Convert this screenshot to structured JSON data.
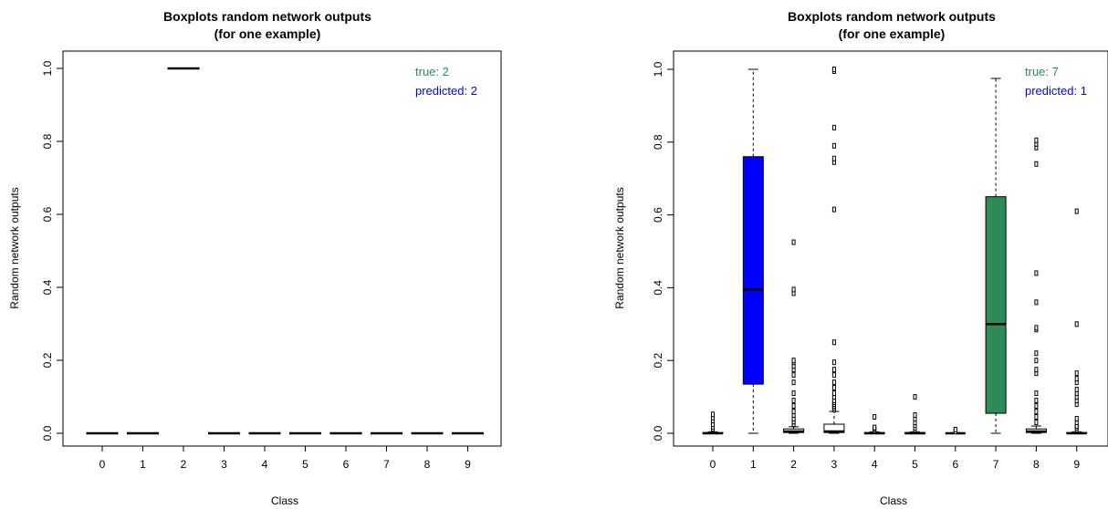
{
  "chart_data": [
    {
      "type": "boxplot",
      "title": [
        "Boxplots  random network outputs",
        "(for one example)"
      ],
      "xlabel": "Class",
      "ylabel": "Random network outputs",
      "categories": [
        "0",
        "1",
        "2",
        "3",
        "4",
        "5",
        "6",
        "7",
        "8",
        "9"
      ],
      "ylim": [
        0,
        1
      ],
      "yticks": [
        "0.0",
        "0.2",
        "0.4",
        "0.6",
        "0.8",
        "1.0"
      ],
      "annotation": {
        "true_text": "true:  2",
        "predicted_text": "predicted:  2",
        "true_color": "#2e8b57",
        "predicted_color": "#0000ff"
      },
      "boxes": [
        {
          "cat": "0",
          "min": 0,
          "q1": 0,
          "median": 0,
          "q3": 0,
          "max": 0,
          "outliers": [],
          "fill": "#ffffff"
        },
        {
          "cat": "1",
          "min": 0,
          "q1": 0,
          "median": 0,
          "q3": 0,
          "max": 0,
          "outliers": [],
          "fill": "#ffffff"
        },
        {
          "cat": "2",
          "min": 1,
          "q1": 1,
          "median": 1,
          "q3": 1,
          "max": 1,
          "outliers": [],
          "fill": "#ffffff"
        },
        {
          "cat": "3",
          "min": 0,
          "q1": 0,
          "median": 0,
          "q3": 0,
          "max": 0,
          "outliers": [],
          "fill": "#ffffff"
        },
        {
          "cat": "4",
          "min": 0,
          "q1": 0,
          "median": 0,
          "q3": 0,
          "max": 0,
          "outliers": [],
          "fill": "#ffffff"
        },
        {
          "cat": "5",
          "min": 0,
          "q1": 0,
          "median": 0,
          "q3": 0,
          "max": 0,
          "outliers": [],
          "fill": "#ffffff"
        },
        {
          "cat": "6",
          "min": 0,
          "q1": 0,
          "median": 0,
          "q3": 0,
          "max": 0,
          "outliers": [],
          "fill": "#ffffff"
        },
        {
          "cat": "7",
          "min": 0,
          "q1": 0,
          "median": 0,
          "q3": 0,
          "max": 0,
          "outliers": [],
          "fill": "#ffffff"
        },
        {
          "cat": "8",
          "min": 0,
          "q1": 0,
          "median": 0,
          "q3": 0,
          "max": 0,
          "outliers": [],
          "fill": "#ffffff"
        },
        {
          "cat": "9",
          "min": 0,
          "q1": 0,
          "median": 0,
          "q3": 0,
          "max": 0,
          "outliers": [],
          "fill": "#ffffff"
        }
      ]
    },
    {
      "type": "boxplot",
      "title": [
        "Boxplots random network outputs",
        "(for one example)"
      ],
      "xlabel": "Class",
      "ylabel": "Random network outputs",
      "categories": [
        "0",
        "1",
        "2",
        "3",
        "4",
        "5",
        "6",
        "7",
        "8",
        "9"
      ],
      "ylim": [
        0,
        1
      ],
      "yticks": [
        "0.0",
        "0.2",
        "0.4",
        "0.6",
        "0.8",
        "1.0"
      ],
      "annotation": {
        "true_text": "true:  7",
        "predicted_text": "predicted:  1",
        "true_color": "#2e8b57",
        "predicted_color": "#0000ff"
      },
      "boxes": [
        {
          "cat": "0",
          "min": 0,
          "q1": 0,
          "median": 0,
          "q3": 0.002,
          "max": 0.004,
          "outliers": [
            0.012,
            0.018,
            0.025,
            0.035,
            0.043,
            0.052
          ],
          "fill": "#ffffff"
        },
        {
          "cat": "1",
          "min": 0,
          "q1": 0.135,
          "median": 0.395,
          "q3": 0.76,
          "max": 1.0,
          "outliers": [],
          "fill": "#0000ff"
        },
        {
          "cat": "2",
          "min": 0,
          "q1": 0.002,
          "median": 0.005,
          "q3": 0.012,
          "max": 0.018,
          "outliers": [
            0.025,
            0.032,
            0.04,
            0.05,
            0.06,
            0.075,
            0.09,
            0.11,
            0.14,
            0.16,
            0.175,
            0.185,
            0.195,
            0.2,
            0.385,
            0.395,
            0.525
          ],
          "fill": "#ffffff"
        },
        {
          "cat": "3",
          "min": 0,
          "q1": 0.002,
          "median": 0.005,
          "q3": 0.025,
          "max": 0.06,
          "outliers": [
            0.065,
            0.07,
            0.075,
            0.08,
            0.085,
            0.09,
            0.1,
            0.11,
            0.125,
            0.14,
            0.16,
            0.175,
            0.195,
            0.25,
            0.615,
            0.745,
            0.755,
            0.79,
            0.84,
            0.995,
            1.0
          ],
          "fill": "#ffffff"
        },
        {
          "cat": "4",
          "min": 0,
          "q1": 0,
          "median": 0,
          "q3": 0.002,
          "max": 0.004,
          "outliers": [
            0.008,
            0.012,
            0.016,
            0.045
          ],
          "fill": "#ffffff"
        },
        {
          "cat": "5",
          "min": 0,
          "q1": 0,
          "median": 0,
          "q3": 0.002,
          "max": 0.004,
          "outliers": [
            0.01,
            0.015,
            0.022,
            0.03,
            0.04,
            0.05,
            0.1
          ],
          "fill": "#ffffff"
        },
        {
          "cat": "6",
          "min": 0,
          "q1": 0,
          "median": 0,
          "q3": 0.001,
          "max": 0.002,
          "outliers": [
            0.005,
            0.01
          ],
          "fill": "#ffffff"
        },
        {
          "cat": "7",
          "min": 0,
          "q1": 0.055,
          "median": 0.3,
          "q3": 0.65,
          "max": 0.975,
          "outliers": [],
          "fill": "#2e8b57"
        },
        {
          "cat": "8",
          "min": 0,
          "q1": 0.002,
          "median": 0.005,
          "q3": 0.012,
          "max": 0.02,
          "outliers": [
            0.03,
            0.045,
            0.06,
            0.075,
            0.09,
            0.11,
            0.165,
            0.175,
            0.2,
            0.22,
            0.285,
            0.29,
            0.36,
            0.44,
            0.74,
            0.785,
            0.795,
            0.805
          ],
          "fill": "#ffffff"
        },
        {
          "cat": "9",
          "min": 0,
          "q1": 0,
          "median": 0,
          "q3": 0.002,
          "max": 0.004,
          "outliers": [
            0.01,
            0.015,
            0.02,
            0.03,
            0.04,
            0.08,
            0.09,
            0.1,
            0.11,
            0.12,
            0.14,
            0.15,
            0.165,
            0.3,
            0.61
          ],
          "fill": "#ffffff"
        }
      ]
    }
  ]
}
